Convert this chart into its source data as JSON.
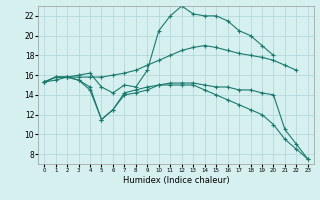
{
  "xlabel": "Humidex (Indice chaleur)",
  "ylabel": "",
  "xlim": [
    -0.5,
    23.5
  ],
  "ylim": [
    7,
    23
  ],
  "yticks": [
    8,
    10,
    12,
    14,
    16,
    18,
    20,
    22
  ],
  "xticks": [
    0,
    1,
    2,
    3,
    4,
    5,
    6,
    7,
    8,
    9,
    10,
    11,
    12,
    13,
    14,
    15,
    16,
    17,
    18,
    19,
    20,
    21,
    22,
    23
  ],
  "bg_color": "#d6efef",
  "line_color": "#1a7a6e",
  "grid_color": "#aed4d4",
  "lines": [
    {
      "x": [
        0,
        1,
        2,
        3,
        4,
        5,
        6,
        7,
        8,
        9,
        10,
        11,
        12,
        13,
        14,
        15,
        16,
        17,
        18,
        19,
        20,
        21,
        22
      ],
      "y": [
        15.3,
        15.8,
        15.8,
        15.8,
        15.8,
        15.8,
        16.0,
        16.2,
        16.5,
        17.0,
        17.5,
        18.0,
        18.5,
        18.8,
        19.0,
        18.8,
        18.5,
        18.2,
        18.0,
        17.8,
        17.5,
        17.0,
        16.5
      ]
    },
    {
      "x": [
        0,
        1,
        2,
        3,
        4,
        5,
        6,
        7,
        8,
        9,
        10,
        11,
        12,
        13,
        14,
        15,
        16,
        17,
        18,
        19,
        20
      ],
      "y": [
        15.3,
        15.8,
        15.8,
        16.0,
        16.2,
        14.8,
        14.2,
        15.0,
        14.8,
        16.5,
        20.5,
        22.0,
        23.0,
        22.2,
        22.0,
        22.0,
        21.5,
        20.5,
        20.0,
        19.0,
        18.0
      ]
    },
    {
      "x": [
        0,
        1,
        2,
        3,
        4,
        5,
        6,
        7,
        8,
        9,
        10,
        11,
        12,
        13,
        14,
        15,
        16,
        17,
        18,
        19,
        20,
        21,
        22,
        23
      ],
      "y": [
        15.3,
        15.8,
        15.8,
        15.5,
        14.5,
        11.5,
        12.5,
        14.2,
        14.5,
        14.8,
        15.0,
        15.2,
        15.2,
        15.2,
        15.0,
        14.8,
        14.8,
        14.5,
        14.5,
        14.2,
        14.0,
        10.5,
        9.0,
        7.5
      ]
    },
    {
      "x": [
        0,
        1,
        2,
        3,
        4,
        5,
        6,
        7,
        8,
        9,
        10,
        11,
        12,
        13,
        14,
        15,
        16,
        17,
        18,
        19,
        20,
        21,
        22,
        23
      ],
      "y": [
        15.3,
        15.5,
        15.8,
        15.5,
        14.8,
        11.5,
        12.5,
        14.0,
        14.2,
        14.5,
        15.0,
        15.0,
        15.0,
        15.0,
        14.5,
        14.0,
        13.5,
        13.0,
        12.5,
        12.0,
        11.0,
        9.5,
        8.5,
        7.5
      ]
    }
  ]
}
